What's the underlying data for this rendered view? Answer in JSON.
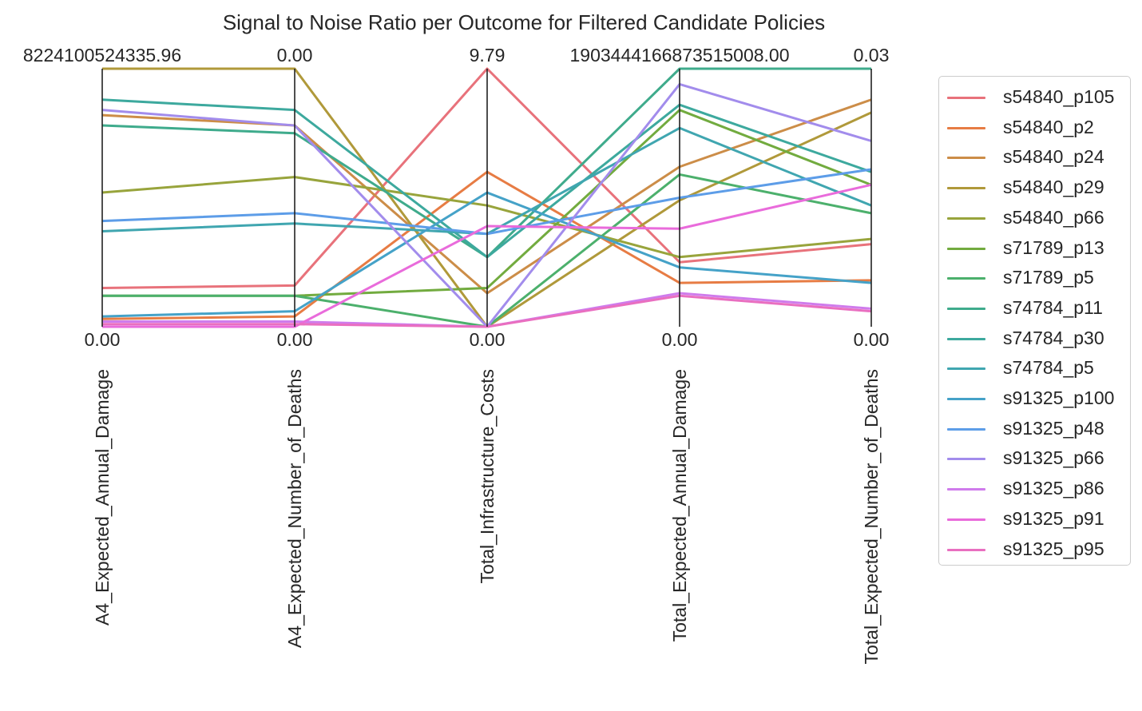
{
  "chart_data": {
    "type": "line",
    "title": "Signal to Noise Ratio per Outcome for Filtered Candidate Policies",
    "axes": [
      {
        "label": "A4_Expected_Annual_Damage",
        "max_label": "8224100524335.96",
        "min_label": "0.00"
      },
      {
        "label": "A4_Expected_Number_of_Deaths",
        "max_label": "0.00",
        "min_label": "0.00"
      },
      {
        "label": "Total_Infrastructure_Costs",
        "max_label": "9.79",
        "min_label": "0.00"
      },
      {
        "label": "Total_Expected_Annual_Damage",
        "max_label": "1903444166873515008.00",
        "min_label": "0.00"
      },
      {
        "label": "Total_Expected_Number_of_Deaths",
        "max_label": "0.03",
        "min_label": "0.00"
      }
    ],
    "note_values": "normalized 0 (axis min) to 1 (axis max) along each parallel axis",
    "series": [
      {
        "name": "s54840_p105",
        "color": "#e8727b",
        "values": [
          0.15,
          0.16,
          1.0,
          0.25,
          0.32
        ]
      },
      {
        "name": "s54840_p2",
        "color": "#e77c44",
        "values": [
          0.03,
          0.04,
          0.6,
          0.17,
          0.18
        ]
      },
      {
        "name": "s54840_p24",
        "color": "#cc8d48",
        "values": [
          0.82,
          0.78,
          0.13,
          0.62,
          0.88
        ]
      },
      {
        "name": "s54840_p29",
        "color": "#b0993a",
        "values": [
          1.0,
          1.0,
          0.0,
          0.49,
          0.83
        ]
      },
      {
        "name": "s54840_p66",
        "color": "#98a43c",
        "values": [
          0.52,
          0.58,
          0.47,
          0.27,
          0.34
        ]
      },
      {
        "name": "s71789_p13",
        "color": "#72ab3f",
        "values": [
          0.12,
          0.12,
          0.15,
          0.84,
          0.55
        ]
      },
      {
        "name": "s71789_p5",
        "color": "#4cb06c",
        "values": [
          0.12,
          0.12,
          0.0,
          0.59,
          0.44
        ]
      },
      {
        "name": "s74784_p11",
        "color": "#3fab8c",
        "values": [
          0.78,
          0.75,
          0.27,
          1.0,
          1.0
        ]
      },
      {
        "name": "s74784_p30",
        "color": "#3da99e",
        "values": [
          0.88,
          0.84,
          0.27,
          0.86,
          0.6
        ]
      },
      {
        "name": "s74784_p5",
        "color": "#40a6b0",
        "values": [
          0.37,
          0.4,
          0.36,
          0.77,
          0.47
        ]
      },
      {
        "name": "s91325_p100",
        "color": "#45a2c8",
        "values": [
          0.04,
          0.06,
          0.52,
          0.23,
          0.17
        ]
      },
      {
        "name": "s91325_p48",
        "color": "#5d9de8",
        "values": [
          0.41,
          0.44,
          0.36,
          0.5,
          0.61
        ]
      },
      {
        "name": "s91325_p66",
        "color": "#a28cec",
        "values": [
          0.84,
          0.78,
          0.0,
          0.94,
          0.72
        ]
      },
      {
        "name": "s91325_p86",
        "color": "#cf7bec",
        "values": [
          0.02,
          0.02,
          0.0,
          0.13,
          0.07
        ]
      },
      {
        "name": "s91325_p91",
        "color": "#e96bdb",
        "values": [
          0.0,
          0.0,
          0.39,
          0.38,
          0.55
        ]
      },
      {
        "name": "s91325_p95",
        "color": "#e96fc0",
        "values": [
          0.01,
          0.01,
          0.0,
          0.12,
          0.06
        ]
      }
    ]
  }
}
